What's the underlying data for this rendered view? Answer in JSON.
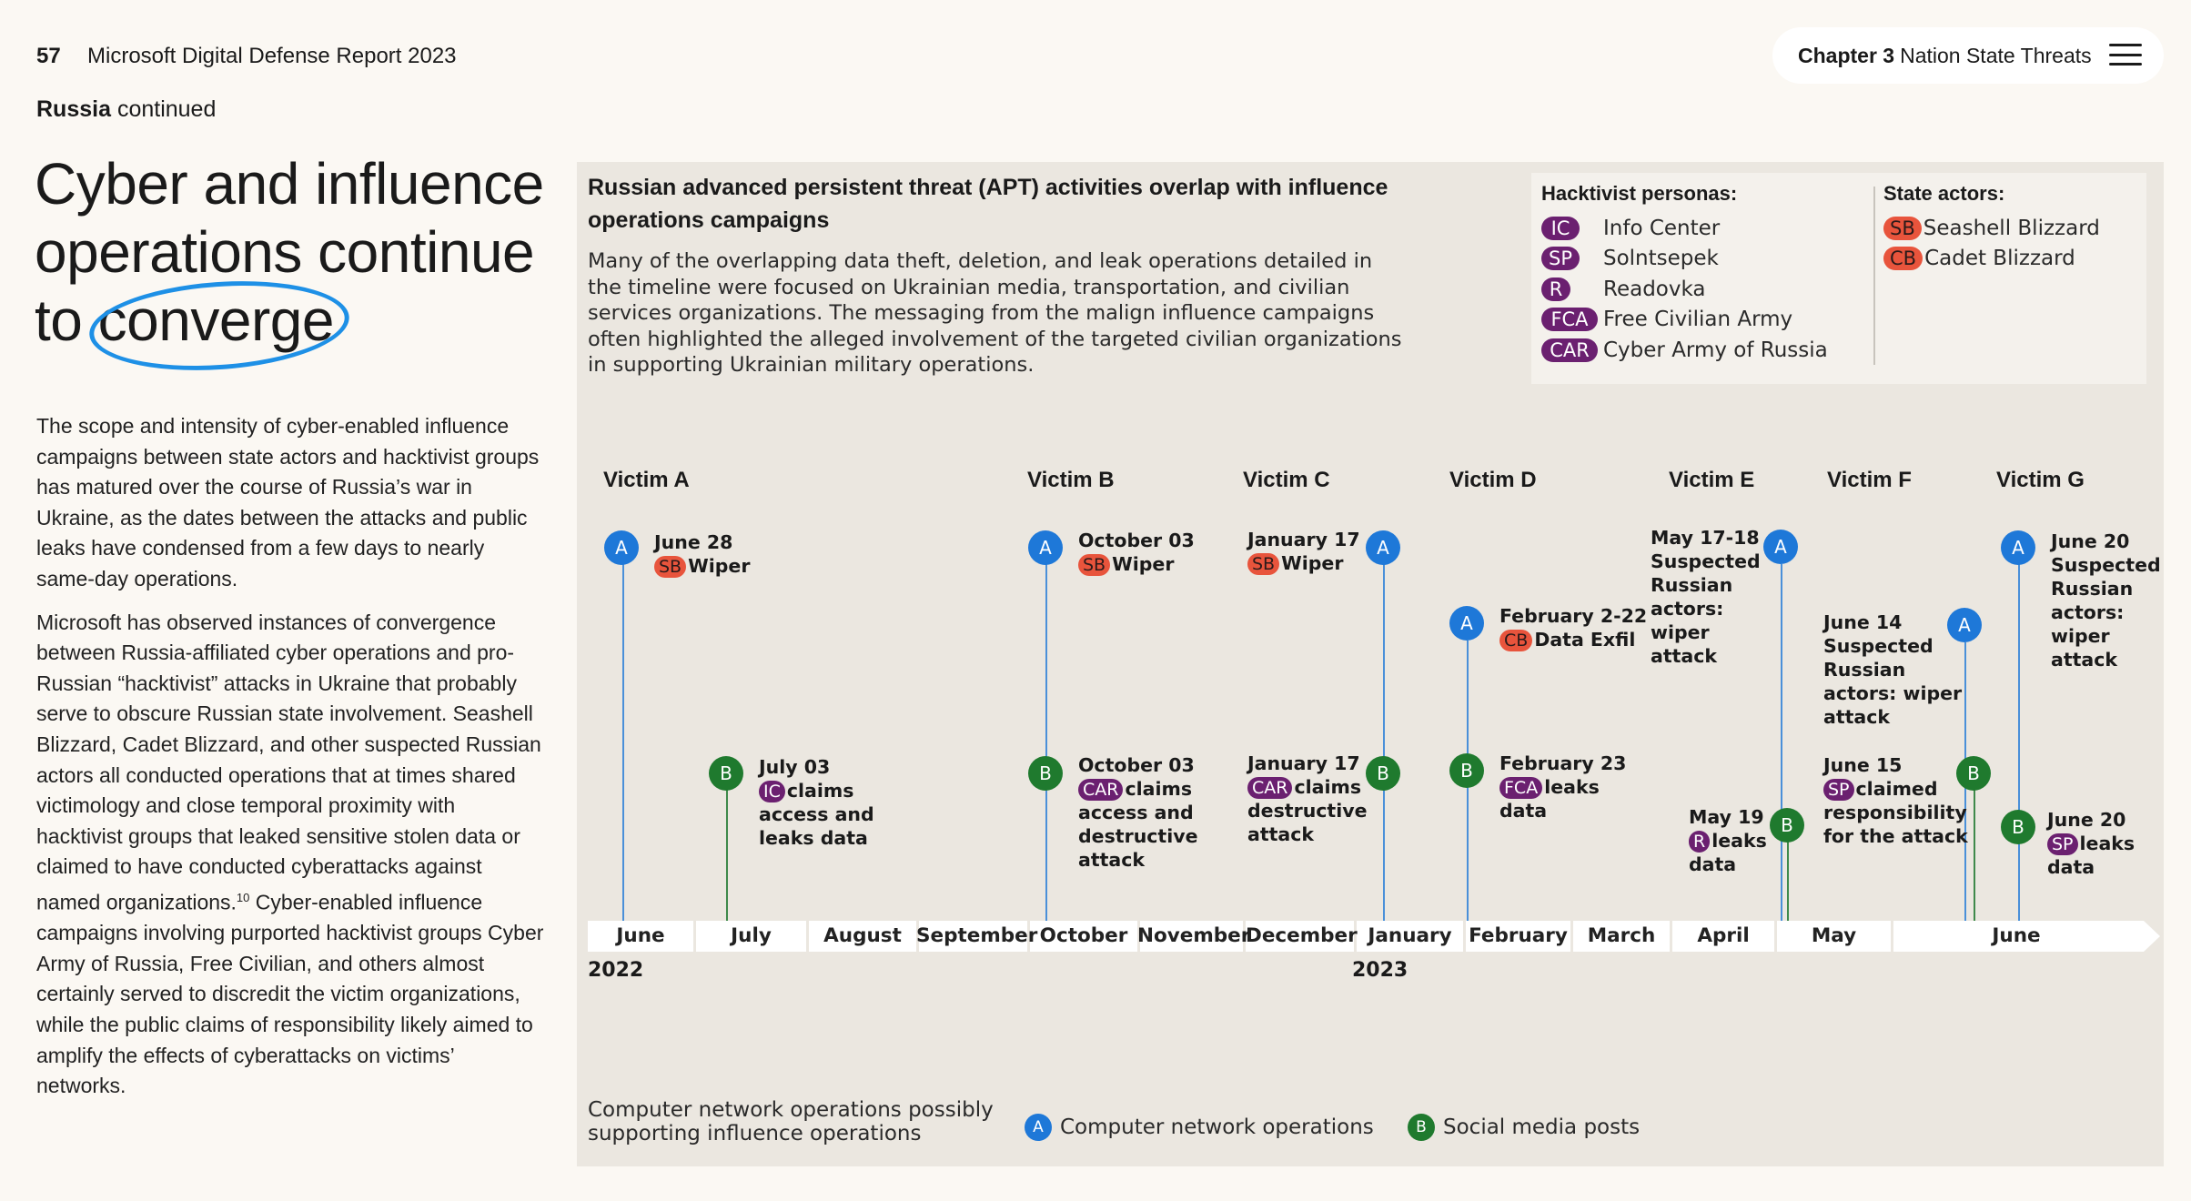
{
  "header": {
    "page_number": "57",
    "doc_title": "Microsoft Digital Defense Report 2023",
    "chapter_label": "Chapter 3",
    "chapter_name": "Nation State Threats"
  },
  "section": {
    "name": "Russia",
    "suffix": "continued"
  },
  "headline": {
    "line1": "Cyber and influence",
    "line2": "operations continue",
    "line3a": "to ",
    "line3b": "converge"
  },
  "body": {
    "p1": "The scope and intensity of cyber-enabled influence campaigns between state actors and hacktivist groups has matured over the course of Russia’s war in Ukraine, as the dates between the attacks and public leaks have condensed from a few days to nearly same-day operations.",
    "p2a": "Microsoft has observed instances of convergence between Russia-affiliated cyber operations and pro-Russian “hacktivist” attacks in Ukraine that probably serve to obscure Russian state involvement. Seashell Blizzard, Cadet Blizzard, and other suspected Russian actors all conducted operations that at times shared victimology and close temporal proximity with hacktivist groups that leaked sensitive stolen data or claimed to have conducted cyberattacks against named organizations.",
    "p2_sup": "10",
    "p2b": " Cyber-enabled influence campaigns involving purported hacktivist groups Cyber Army of Russia, Free Civilian, and others almost certainly served to discredit the victim organizations, while the public claims of responsibility likely aimed to amplify the effects of cyberattacks on victims’ networks."
  },
  "panel": {
    "title": "Russian advanced persistent threat (APT) activities overlap with influence operations campaigns",
    "description": "Many of the overlapping data theft, deletion, and leak operations detailed in the timeline were focused on Ukrainian media, transportation, and civilian services organizations. The messaging from the malign influence campaigns often highlighted the alleged involvement of the targeted civilian organizations in supporting Ukrainian military operations."
  },
  "legend": {
    "hacktivist_title": "Hacktivist personas:",
    "hacktivists": [
      {
        "code": "IC",
        "name": "Info Center"
      },
      {
        "code": "SP",
        "name": "Solntsepek"
      },
      {
        "code": "R",
        "name": "Readovka"
      },
      {
        "code": "FCA",
        "name": "Free Civilian Army"
      },
      {
        "code": "CAR",
        "name": "Cyber Army of Russia"
      }
    ],
    "state_title": "State actors:",
    "state": [
      {
        "code": "SB",
        "name": "Seashell Blizzard"
      },
      {
        "code": "CB",
        "name": "Cadet Blizzard"
      }
    ],
    "colors": {
      "hacktivist": "#6b2070",
      "state": "#e8543c",
      "network_ops": "#1e78d8",
      "social_posts": "#1f7a2e"
    }
  },
  "victims": [
    "Victim A",
    "Victim B",
    "Victim C",
    "Victim D",
    "Victim E",
    "Victim F",
    "Victim G"
  ],
  "events": {
    "a_a": {
      "date": "June 28",
      "badge": "SB",
      "text": "Wiper"
    },
    "a_b": {
      "date": "July 03",
      "badge": "IC",
      "text1": "claims",
      "text2": "access and",
      "text3": "leaks data"
    },
    "b_a": {
      "date": "October 03",
      "badge": "SB",
      "text": "Wiper"
    },
    "b_b": {
      "date": "October 03",
      "badge": "CAR",
      "text1": "claims",
      "text2": "access and",
      "text3": "destructive",
      "text4": "attack"
    },
    "c_a": {
      "date": "January 17",
      "badge": "SB",
      "text": "Wiper"
    },
    "c_b": {
      "date": "January 17",
      "badge": "CAR",
      "text1": "claims",
      "text2": "destructive",
      "text3": "attack"
    },
    "d_a": {
      "date": "February 2-22",
      "badge": "CB",
      "text": "Data Exfil"
    },
    "d_b": {
      "date": "February 23",
      "badge": "FCA",
      "text1": "leaks",
      "text2": "data"
    },
    "e_a": {
      "date": "May 17-18",
      "l2": "Suspected",
      "l3": "Russian",
      "l4": "actors:",
      "l5": "wiper",
      "l6": "attack"
    },
    "e_b": {
      "date": "May 19",
      "badge": "R",
      "text1": "leaks",
      "text2": "data"
    },
    "f_a": {
      "date": "June 14",
      "l2": "Suspected",
      "l3": "Russian",
      "l4": "actors: wiper",
      "l5": "attack"
    },
    "f_b": {
      "date": "June 15",
      "badge": "SP",
      "text1": "claimed",
      "text2": "responsibility",
      "text3": "for the attack"
    },
    "g_a": {
      "date": "June 20",
      "l2": "Suspected",
      "l3": "Russian",
      "l4": "actors:",
      "l5": "wiper",
      "l6": "attack"
    },
    "g_b": {
      "date": "June 20",
      "badge": "SP",
      "text1": "leaks",
      "text2": "data"
    }
  },
  "markers": {
    "a": "A",
    "b": "B"
  },
  "timeline": {
    "months": [
      "June",
      "July",
      "August",
      "September",
      "October",
      "November",
      "December",
      "January",
      "February",
      "March",
      "April",
      "May",
      "June"
    ],
    "years": [
      "2022",
      "2023"
    ]
  },
  "footer": {
    "caption1": "Computer network operations possibly",
    "caption2": "supporting influence operations",
    "legend_a_label": "Computer network operations",
    "legend_b_label": "Social media posts"
  }
}
